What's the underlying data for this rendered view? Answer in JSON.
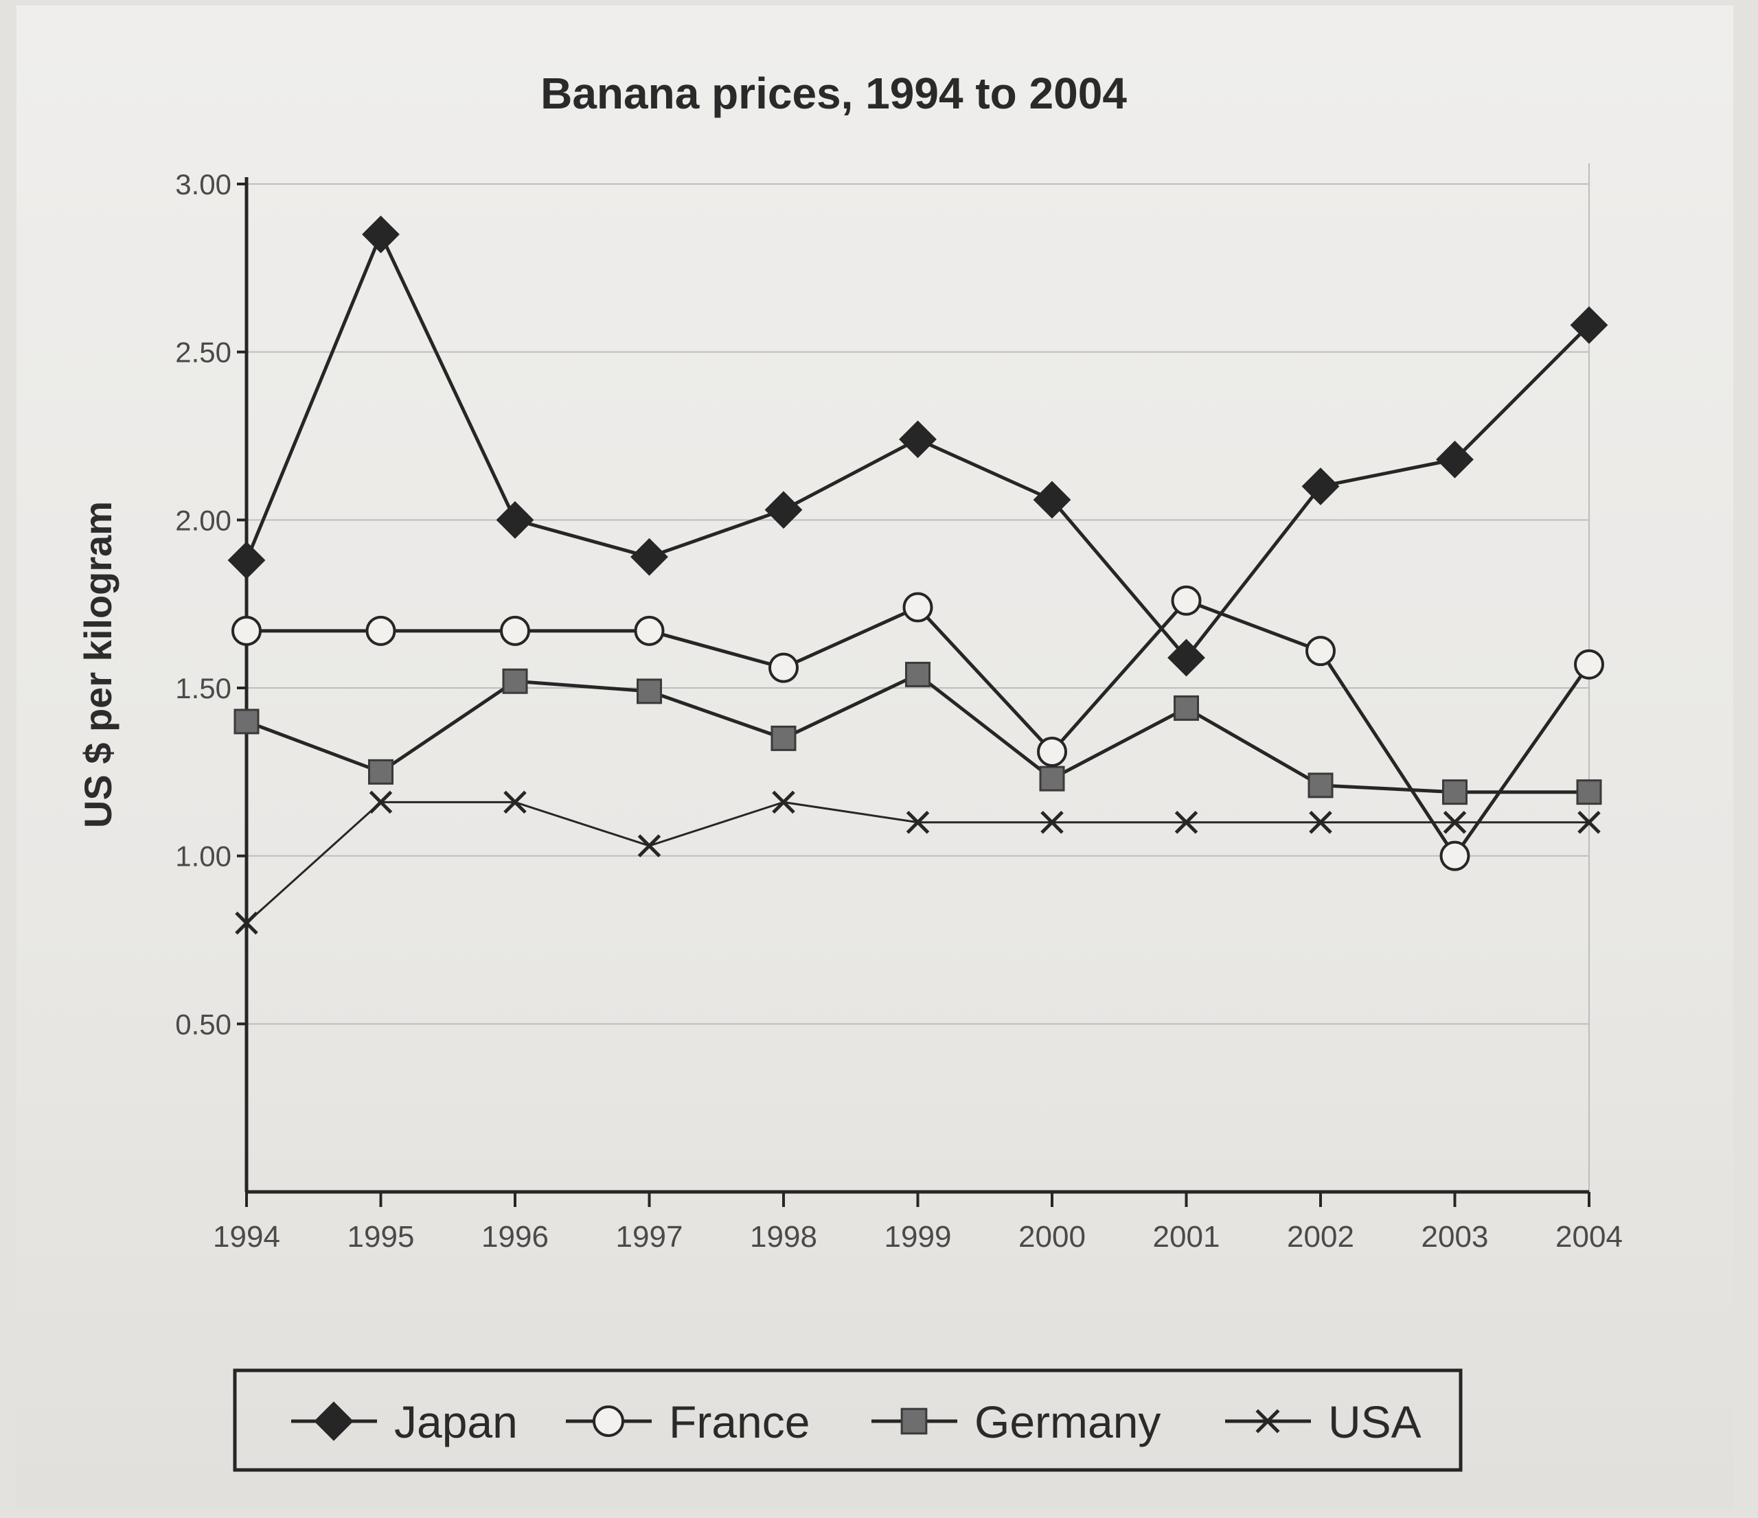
{
  "chart_data": {
    "type": "line",
    "title": "Banana prices, 1994 to 2004",
    "xlabel": "",
    "ylabel": "US $ per kilogram",
    "x": [
      1994,
      1995,
      1996,
      1997,
      1998,
      1999,
      2000,
      2001,
      2002,
      2003,
      2004
    ],
    "x_tick_labels": [
      "1994",
      "1995",
      "1996",
      "1997",
      "1998",
      "1999",
      "2000",
      "2001",
      "2002",
      "2003",
      "2004"
    ],
    "y_tick_labels": [
      "0.50",
      "1.00",
      "1.50",
      "2.00",
      "2.50",
      "3.00"
    ],
    "y_ticks": [
      0.5,
      1.0,
      1.5,
      2.0,
      2.5,
      3.0
    ],
    "ylim": [
      0,
      3.0
    ],
    "grid": true,
    "legend_position": "bottom",
    "series": [
      {
        "name": "Japan",
        "marker": "diamond",
        "values": [
          1.88,
          2.85,
          2.0,
          1.89,
          2.03,
          2.24,
          2.06,
          1.59,
          2.1,
          2.18,
          2.58
        ]
      },
      {
        "name": "France",
        "marker": "circle",
        "values": [
          1.67,
          1.67,
          1.67,
          1.67,
          1.56,
          1.74,
          1.31,
          1.76,
          1.61,
          1.0,
          1.57
        ]
      },
      {
        "name": "Germany",
        "marker": "square",
        "values": [
          1.4,
          1.25,
          1.52,
          1.49,
          1.35,
          1.54,
          1.23,
          1.44,
          1.21,
          1.19,
          1.19
        ]
      },
      {
        "name": "USA",
        "marker": "x",
        "values": [
          0.8,
          1.16,
          1.16,
          1.03,
          1.16,
          1.1,
          1.1,
          1.1,
          1.1,
          1.1,
          1.1
        ]
      }
    ],
    "colors": {
      "line": "#262626",
      "marker_fill_dark": "#262626",
      "marker_fill_square": "#6e6e6e",
      "marker_fill_open": "#f2f1ee",
      "grid": "#bdbdbd",
      "axis": "#262626"
    }
  }
}
